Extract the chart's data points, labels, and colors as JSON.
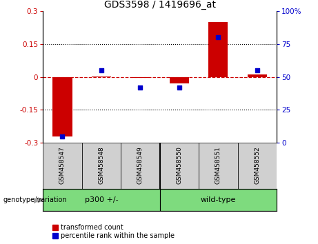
{
  "title": "GDS3598 / 1419696_at",
  "samples": [
    "GSM458547",
    "GSM458548",
    "GSM458549",
    "GSM458550",
    "GSM458551",
    "GSM458552"
  ],
  "red_values": [
    -0.27,
    0.002,
    -0.005,
    -0.03,
    0.25,
    0.012
  ],
  "blue_values": [
    5,
    55,
    42,
    42,
    80,
    55
  ],
  "ylim_left": [
    -0.3,
    0.3
  ],
  "ylim_right": [
    0,
    100
  ],
  "yticks_left": [
    -0.3,
    -0.15,
    0,
    0.15,
    0.3
  ],
  "yticks_right": [
    0,
    25,
    50,
    75,
    100
  ],
  "ytick_labels_left": [
    "-0.3",
    "-0.15",
    "0",
    "0.15",
    "0.3"
  ],
  "ytick_labels_right": [
    "0",
    "25",
    "50",
    "75",
    "100%"
  ],
  "hlines": [
    0.15,
    -0.15
  ],
  "red_color": "#CC0000",
  "blue_color": "#0000CC",
  "bar_width": 0.5,
  "legend_red": "transformed count",
  "legend_blue": "percentile rank within the sample",
  "bg_color": "#FFFFFF",
  "plot_bg": "#FFFFFF",
  "tick_color_left": "#CC0000",
  "tick_color_right": "#0000CC",
  "title_fontsize": 10,
  "tick_fontsize": 7.5,
  "sample_fontsize": 6.5,
  "group_fontsize": 8,
  "legend_fontsize": 7,
  "label_color_gray": "#C8C8C8",
  "group_green": "#7EDB7E"
}
